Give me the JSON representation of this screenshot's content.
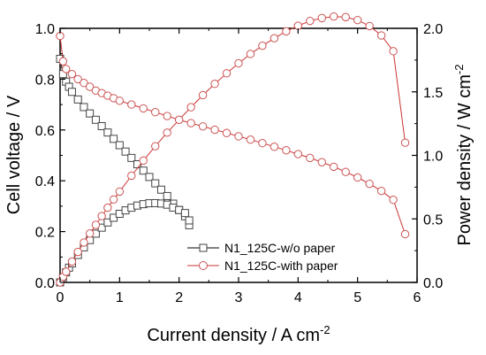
{
  "chart_data": {
    "type": "line",
    "xlabel": "Current density / A cm",
    "xlabel_sup": "-2",
    "ylabel_left": "Cell voltage / V",
    "ylabel_right": "Power density / W cm",
    "ylabel_right_sup": "-2",
    "xlim": [
      0,
      6
    ],
    "ylim_left": [
      0.0,
      1.0
    ],
    "ylim_right": [
      0.0,
      2.0
    ],
    "x_ticks": [
      "0",
      "1",
      "2",
      "3",
      "4",
      "5",
      "6"
    ],
    "y_left_ticks": [
      "0.0",
      "0.2",
      "0.4",
      "0.6",
      "0.8",
      "1.0"
    ],
    "y_right_ticks": [
      "0.0",
      "0.5",
      "1.0",
      "1.5",
      "2.0"
    ],
    "grid": false,
    "legend_position": "bottom-right",
    "series": [
      {
        "name": "N1_125C-w/o paper",
        "marker": "square",
        "color": "#000000",
        "marker_edge": "#444444",
        "polarization": {
          "x": [
            0.0,
            0.05,
            0.1,
            0.15,
            0.2,
            0.3,
            0.4,
            0.5,
            0.6,
            0.7,
            0.8,
            0.9,
            1.0,
            1.1,
            1.2,
            1.3,
            1.4,
            1.5,
            1.6,
            1.7,
            1.8,
            1.9,
            2.0,
            2.1,
            2.17
          ],
          "y": [
            0.88,
            0.82,
            0.79,
            0.77,
            0.75,
            0.72,
            0.69,
            0.665,
            0.64,
            0.615,
            0.59,
            0.565,
            0.54,
            0.515,
            0.49,
            0.465,
            0.44,
            0.415,
            0.39,
            0.365,
            0.34,
            0.31,
            0.285,
            0.26,
            0.225
          ]
        },
        "power": {
          "x": [
            0.0,
            0.05,
            0.1,
            0.15,
            0.2,
            0.3,
            0.4,
            0.5,
            0.6,
            0.7,
            0.8,
            0.9,
            1.0,
            1.1,
            1.2,
            1.3,
            1.4,
            1.5,
            1.6,
            1.7,
            1.8,
            1.9,
            2.0,
            2.1,
            2.17
          ],
          "y": [
            0.0,
            0.041,
            0.079,
            0.116,
            0.15,
            0.216,
            0.276,
            0.333,
            0.384,
            0.431,
            0.472,
            0.509,
            0.54,
            0.567,
            0.588,
            0.605,
            0.616,
            0.623,
            0.624,
            0.621,
            0.612,
            0.589,
            0.57,
            0.546,
            0.488
          ]
        }
      },
      {
        "name": "N1_125C-with paper",
        "marker": "circle",
        "color": "#cc3333",
        "marker_edge": "#cc5555",
        "polarization": {
          "x": [
            0.0,
            0.05,
            0.1,
            0.2,
            0.3,
            0.4,
            0.5,
            0.6,
            0.7,
            0.8,
            0.9,
            1.0,
            1.2,
            1.4,
            1.6,
            1.8,
            2.0,
            2.2,
            2.4,
            2.6,
            2.8,
            3.0,
            3.2,
            3.4,
            3.6,
            3.8,
            4.0,
            4.2,
            4.4,
            4.6,
            4.8,
            5.0,
            5.2,
            5.4,
            5.6,
            5.8
          ],
          "y": [
            0.97,
            0.87,
            0.84,
            0.82,
            0.8,
            0.785,
            0.77,
            0.755,
            0.745,
            0.735,
            0.725,
            0.715,
            0.7,
            0.685,
            0.67,
            0.655,
            0.64,
            0.627,
            0.614,
            0.601,
            0.588,
            0.575,
            0.562,
            0.548,
            0.534,
            0.52,
            0.505,
            0.49,
            0.473,
            0.455,
            0.435,
            0.413,
            0.388,
            0.36,
            0.325,
            0.19
          ]
        },
        "power": {
          "x": [
            0.0,
            0.05,
            0.1,
            0.2,
            0.3,
            0.4,
            0.5,
            0.6,
            0.7,
            0.8,
            0.9,
            1.0,
            1.2,
            1.4,
            1.6,
            1.8,
            2.0,
            2.2,
            2.4,
            2.6,
            2.8,
            3.0,
            3.2,
            3.4,
            3.6,
            3.8,
            4.0,
            4.2,
            4.4,
            4.6,
            4.8,
            5.0,
            5.2,
            5.4,
            5.6,
            5.8
          ],
          "y": [
            0.0,
            0.044,
            0.084,
            0.164,
            0.24,
            0.314,
            0.385,
            0.453,
            0.522,
            0.588,
            0.653,
            0.715,
            0.84,
            0.959,
            1.072,
            1.179,
            1.28,
            1.379,
            1.474,
            1.563,
            1.646,
            1.725,
            1.798,
            1.863,
            1.922,
            1.976,
            2.02,
            2.058,
            2.081,
            2.093,
            2.088,
            2.065,
            2.018,
            1.944,
            1.82,
            1.1
          ]
        }
      }
    ]
  }
}
